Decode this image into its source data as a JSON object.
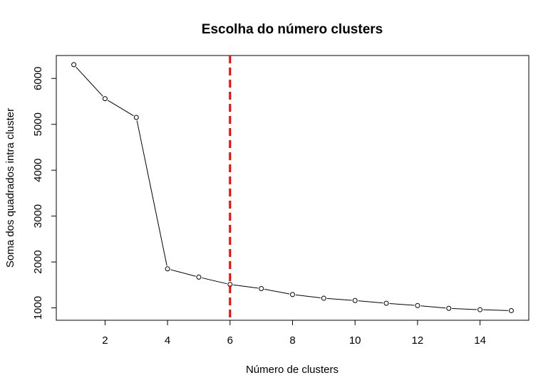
{
  "chart_data": {
    "type": "line",
    "title": "Escolha do número clusters",
    "xlabel": "Número de clusters",
    "ylabel": "Soma dos quadrados intra cluster",
    "xlim": [
      0.44,
      15.56
    ],
    "ylim": [
      730,
      6500
    ],
    "x_ticks": [
      2,
      4,
      6,
      8,
      10,
      12,
      14
    ],
    "y_ticks": [
      1000,
      2000,
      3000,
      4000,
      5000,
      6000
    ],
    "x_tick_labels": [
      "2",
      "4",
      "6",
      "8",
      "10",
      "12",
      "14"
    ],
    "y_tick_labels": [
      "1000",
      "2000",
      "3000",
      "4000",
      "5000",
      "6000"
    ],
    "grid": false,
    "series": [
      {
        "x": [
          1,
          2,
          3,
          4,
          5,
          6,
          7,
          8,
          9,
          10,
          11,
          12,
          13,
          14,
          15
        ],
        "values": [
          6300,
          5560,
          5150,
          1850,
          1670,
          1510,
          1420,
          1290,
          1210,
          1160,
          1100,
          1050,
          990,
          960,
          940
        ],
        "line_color": "#000000",
        "marker": "open-circle"
      }
    ],
    "reference_line": {
      "orientation": "vertical",
      "x": 6,
      "color": "#ff0000",
      "style": "dashed"
    }
  }
}
